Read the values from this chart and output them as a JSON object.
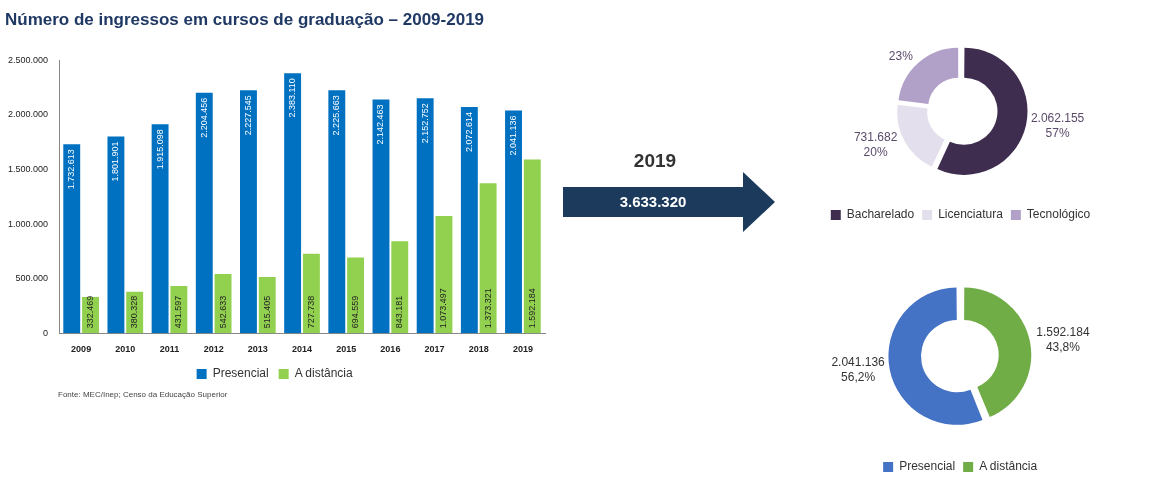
{
  "chart_data": [
    {
      "type": "bar",
      "title": "Número de ingressos em cursos de graduação – 2009-2019",
      "categories": [
        "2009",
        "2010",
        "2011",
        "2012",
        "2013",
        "2014",
        "2015",
        "2016",
        "2017",
        "2018",
        "2019"
      ],
      "series": [
        {
          "name": "Presencial",
          "color": "#0070c0",
          "values": [
            1732613,
            1801901,
            1915098,
            2204456,
            2227545,
            2383110,
            2225663,
            2142463,
            2152752,
            2072614,
            2041136
          ],
          "value_labels": [
            "1.732.613",
            "1.801.901",
            "1.915.098",
            "2.204.456",
            "2.227.545",
            "2.383.110",
            "2.225.663",
            "2.142.463",
            "2.152.752",
            "2.072.614",
            "2.041.136"
          ]
        },
        {
          "name": "A distância",
          "color": "#92d050",
          "values": [
            332469,
            380328,
            431597,
            542633,
            515405,
            727738,
            694559,
            843181,
            1073497,
            1373321,
            1592184
          ],
          "value_labels": [
            "332.469",
            "380.328",
            "431.597",
            "542.633",
            "515.405",
            "727.738",
            "694.559",
            "843.181",
            "1.073.497",
            "1.373.321",
            "1.592.184"
          ]
        }
      ],
      "ylim": [
        0,
        2500000
      ],
      "yticks": [
        0,
        {
          "value": 500000,
          "label": "500.000"
        },
        {
          "value": 1000000,
          "label": "1.000.000"
        },
        {
          "value": 1500000,
          "label": "1.500.000"
        },
        {
          "value": 2000000,
          "label": "2.000.000"
        },
        {
          "value": 2500000,
          "label": "2.500.000"
        }
      ],
      "grid": false,
      "legend": "bottom",
      "annotations": [
        "Fonte: MEC/Inep; Censo da Educação Superior"
      ]
    },
    {
      "type": "other",
      "title": "2019",
      "annotations": [
        "3.633.320"
      ]
    },
    {
      "type": "donut",
      "categories": [
        "Bacharelado",
        "Licenciatura",
        "Tecnológico"
      ],
      "values": [
        57,
        20,
        23
      ],
      "colors": [
        "#3f2d50",
        "#e4dfec",
        "#b1a0c7"
      ],
      "value_labels": [
        "2.062.155\n57%",
        "731.682\n20%",
        "23%"
      ],
      "legend": "bottom"
    },
    {
      "type": "donut",
      "categories": [
        "Presencial",
        "A distância"
      ],
      "values": [
        2041136,
        1592184
      ],
      "colors": [
        "#4472c4",
        "#70ad47"
      ],
      "value_labels": [
        "2.041.136\n56,2%",
        "1.592.184\n43,8%"
      ],
      "legend": "bottom"
    }
  ]
}
